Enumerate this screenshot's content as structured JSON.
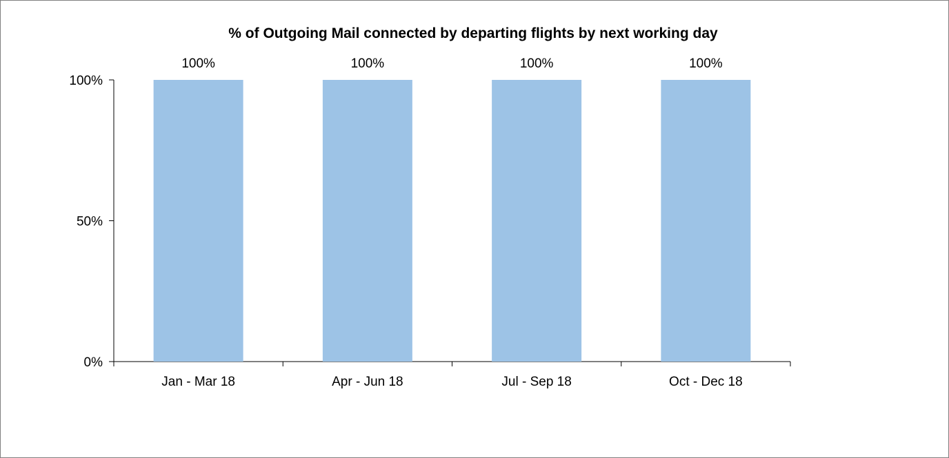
{
  "chart_data": {
    "type": "bar",
    "title": "% of Outgoing Mail connected by departing flights by next working day",
    "categories": [
      "Jan - Mar 18",
      "Apr - Jun 18",
      "Jul - Sep 18",
      "Oct - Dec 18"
    ],
    "series": [
      {
        "values": [
          100,
          100,
          100,
          100
        ],
        "data_labels": [
          "100%",
          "100%",
          "100%",
          "100%"
        ],
        "color": "#9dc3e6"
      }
    ],
    "xlabel": "",
    "ylabel": "",
    "ylim": [
      0,
      100
    ],
    "yticks": [
      {
        "value": 0,
        "label": "0%"
      },
      {
        "value": 50,
        "label": "50%"
      },
      {
        "value": 100,
        "label": "100%"
      }
    ],
    "grid": false,
    "legend": "none"
  }
}
